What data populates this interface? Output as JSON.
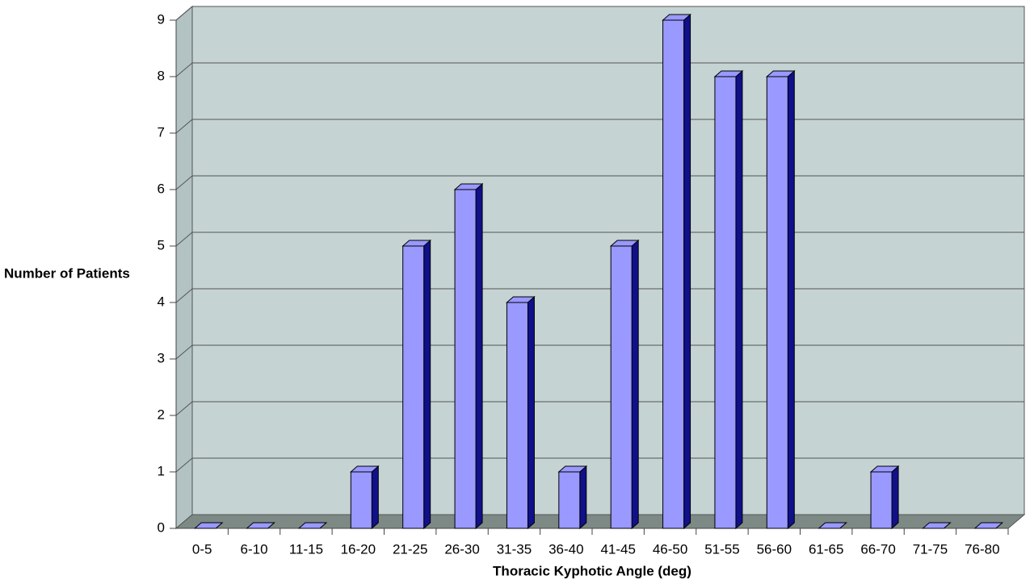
{
  "chart_data": {
    "type": "bar",
    "x_label": "Thoracic Kyphotic Angle (deg)",
    "y_label": "Number of Patients",
    "categories": [
      "0-5",
      "6-10",
      "11-15",
      "16-20",
      "21-25",
      "26-30",
      "31-35",
      "36-40",
      "41-45",
      "46-50",
      "51-55",
      "56-60",
      "61-65",
      "66-70",
      "71-75",
      "76-80"
    ],
    "values": [
      0,
      0,
      0,
      1,
      5,
      6,
      4,
      1,
      5,
      9,
      8,
      8,
      0,
      1,
      0,
      0
    ],
    "color": "#9999ff",
    "ylim": [
      0,
      9
    ],
    "yticks": [
      0,
      1,
      2,
      3,
      4,
      5,
      6,
      7,
      8,
      9
    ],
    "grid": true
  }
}
